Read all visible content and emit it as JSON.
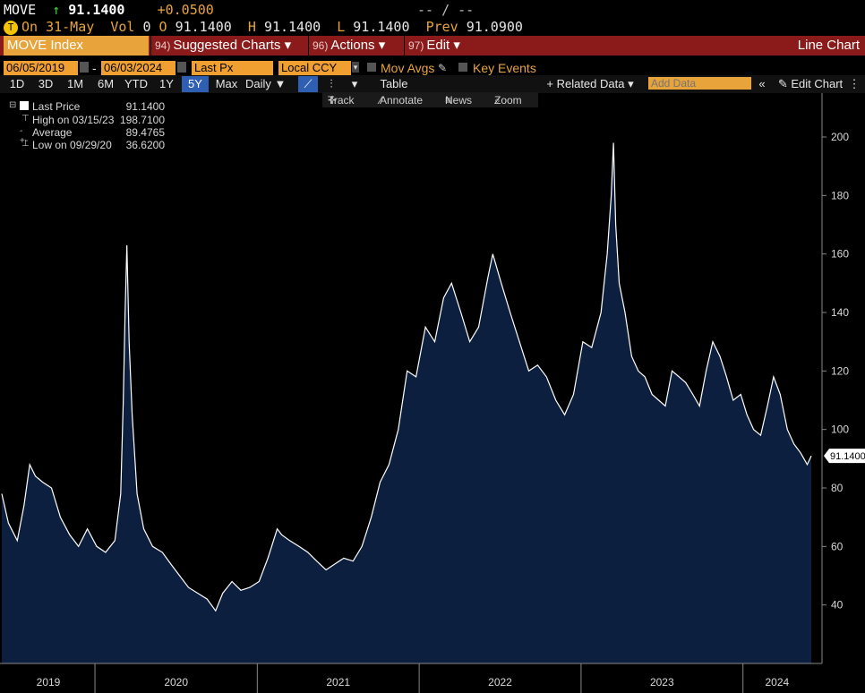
{
  "quote": {
    "ticker": "MOVE",
    "arrow": "↑",
    "last": "91.1400",
    "change": "+0.0500",
    "dashes": "-- / --",
    "on_label": "On",
    "on_date": "31-May",
    "vol_label": "Vol",
    "vol_value": "0",
    "open_label": "O",
    "open_value": "91.1400",
    "high_label": "H",
    "high_value": "91.1400",
    "low_label": "L",
    "low_value": "91.1400",
    "prev_label": "Prev",
    "prev_value": "91.0900"
  },
  "toolbar": {
    "security": "MOVE Index",
    "suggested_num": "94)",
    "suggested_label": "Suggested Charts",
    "actions_num": "96)",
    "actions_label": "Actions",
    "edit_num": "97)",
    "edit_label": "Edit",
    "chart_type": "Line Chart"
  },
  "settings": {
    "start_date": "06/05/2019",
    "date_sep": "-",
    "end_date": "06/03/2024",
    "field": "Last Px",
    "currency": "Local CCY",
    "mov_avgs": "Mov Avgs",
    "key_events": "Key Events"
  },
  "periods": [
    "1D",
    "3D",
    "1M",
    "6M",
    "YTD",
    "1Y",
    "5Y",
    "Max"
  ],
  "selected_period": "5Y",
  "frequency": "Daily",
  "table_label": "Table",
  "related_data": "+ Related Data",
  "add_data_placeholder": "Add Data",
  "edit_chart": "Edit Chart",
  "tools": {
    "track": "Track",
    "annotate": "Annotate",
    "news": "News",
    "zoom": "Zoom"
  },
  "legend": {
    "last_price_label": "Last Price",
    "last_price_value": "91.1400",
    "high_label": "High on 03/15/23",
    "high_value": "198.7100",
    "average_label": "Average",
    "average_value": "89.4765",
    "low_label": "Low on 09/29/20",
    "low_value": "36.6200"
  },
  "colors": {
    "background": "#000000",
    "area_fill": "#0d1f3f",
    "line": "#ffffff",
    "amber": "#e8a33b",
    "toolbar_red": "#8b1a1a",
    "up_green": "#3cd93c"
  },
  "chart_data": {
    "type": "area",
    "title": "",
    "xlabel": "",
    "ylabel": "",
    "ylim": [
      20,
      215
    ],
    "yticks": [
      40,
      60,
      80,
      100,
      120,
      140,
      160,
      180,
      200
    ],
    "xlim": [
      "2019-06-05",
      "2024-06-03"
    ],
    "year_labels": [
      "2019",
      "2020",
      "2021",
      "2022",
      "2023",
      "2024"
    ],
    "last_value_tag": "91.1400",
    "grid": false,
    "series": [
      {
        "name": "Last Price",
        "x": [
          "2019-06-05",
          "2019-06-20",
          "2019-07-10",
          "2019-07-25",
          "2019-08-07",
          "2019-08-20",
          "2019-09-05",
          "2019-09-25",
          "2019-10-15",
          "2019-11-05",
          "2019-11-25",
          "2019-12-15",
          "2020-01-05",
          "2020-01-25",
          "2020-02-15",
          "2020-02-28",
          "2020-03-05",
          "2020-03-09",
          "2020-03-13",
          "2020-03-18",
          "2020-03-25",
          "2020-04-05",
          "2020-04-20",
          "2020-05-10",
          "2020-06-01",
          "2020-06-20",
          "2020-07-10",
          "2020-07-30",
          "2020-08-20",
          "2020-09-10",
          "2020-09-29",
          "2020-10-15",
          "2020-11-05",
          "2020-11-25",
          "2020-12-15",
          "2021-01-05",
          "2021-01-25",
          "2021-02-15",
          "2021-02-25",
          "2021-03-15",
          "2021-04-05",
          "2021-04-25",
          "2021-05-15",
          "2021-06-05",
          "2021-06-25",
          "2021-07-15",
          "2021-08-05",
          "2021-08-25",
          "2021-09-15",
          "2021-10-05",
          "2021-10-25",
          "2021-11-15",
          "2021-12-05",
          "2021-12-25",
          "2022-01-15",
          "2022-02-05",
          "2022-02-25",
          "2022-03-15",
          "2022-04-05",
          "2022-04-25",
          "2022-05-15",
          "2022-06-05",
          "2022-06-16",
          "2022-07-05",
          "2022-07-25",
          "2022-08-15",
          "2022-09-05",
          "2022-09-25",
          "2022-10-15",
          "2022-11-05",
          "2022-11-25",
          "2022-12-15",
          "2023-01-05",
          "2023-01-25",
          "2023-02-15",
          "2023-03-01",
          "2023-03-10",
          "2023-03-15",
          "2023-03-20",
          "2023-03-28",
          "2023-04-10",
          "2023-04-25",
          "2023-05-10",
          "2023-05-25",
          "2023-06-10",
          "2023-06-25",
          "2023-07-10",
          "2023-07-25",
          "2023-08-10",
          "2023-08-25",
          "2023-09-10",
          "2023-09-25",
          "2023-10-10",
          "2023-10-25",
          "2023-11-10",
          "2023-11-25",
          "2023-12-10",
          "2023-12-27",
          "2024-01-10",
          "2024-01-25",
          "2024-02-10",
          "2024-02-25",
          "2024-03-10",
          "2024-03-25",
          "2024-04-10",
          "2024-04-25",
          "2024-05-10",
          "2024-05-25",
          "2024-06-03"
        ],
        "values": [
          78,
          68,
          62,
          74,
          88,
          84,
          82,
          80,
          70,
          64,
          60,
          66,
          60,
          58,
          62,
          78,
          110,
          140,
          163,
          130,
          105,
          78,
          66,
          60,
          58,
          54,
          50,
          46,
          44,
          42,
          38,
          44,
          48,
          45,
          46,
          48,
          56,
          66,
          64,
          62,
          60,
          58,
          55,
          52,
          54,
          56,
          55,
          60,
          70,
          82,
          88,
          100,
          120,
          118,
          135,
          130,
          145,
          150,
          140,
          130,
          135,
          152,
          160,
          150,
          140,
          130,
          120,
          122,
          118,
          110,
          105,
          112,
          130,
          128,
          140,
          160,
          180,
          198,
          170,
          150,
          140,
          125,
          120,
          118,
          112,
          110,
          108,
          120,
          118,
          116,
          112,
          108,
          120,
          130,
          125,
          118,
          110,
          112,
          105,
          100,
          98,
          108,
          118,
          112,
          100,
          95,
          92,
          88,
          91
        ]
      }
    ]
  }
}
